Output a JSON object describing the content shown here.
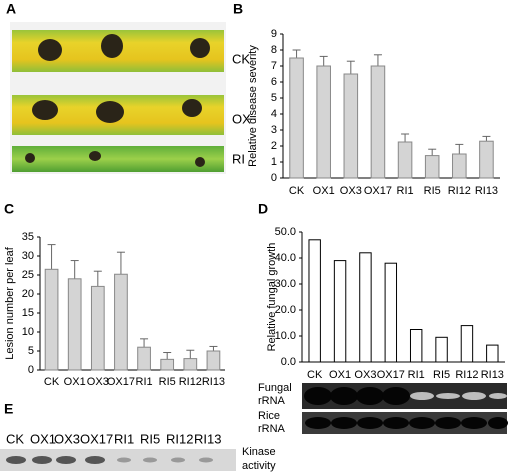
{
  "chart_data": [
    {
      "type": "bar",
      "panel": "B",
      "ylabel": "Relative disease severity",
      "categories": [
        "CK",
        "OX1",
        "OX3",
        "OX17",
        "RI1",
        "RI5",
        "RI12",
        "RI13"
      ],
      "values": [
        7.5,
        7.0,
        6.5,
        7.0,
        2.25,
        1.4,
        1.5,
        2.3
      ],
      "errors": [
        0.5,
        0.6,
        0.8,
        0.7,
        0.5,
        0.4,
        0.6,
        0.3
      ],
      "color": "#d4d4d4",
      "edgecolor": "#888888",
      "ylim": [
        0,
        9
      ],
      "yticks": [
        0,
        1,
        2,
        3,
        4,
        5,
        6,
        7,
        8,
        9
      ]
    },
    {
      "type": "bar",
      "panel": "C",
      "ylabel": "Lesion number per leaf",
      "categories": [
        "CK",
        "OX1",
        "OX3",
        "OX17",
        "RI1",
        "RI5",
        "RI12",
        "RI13"
      ],
      "values": [
        26.5,
        24,
        22,
        25.2,
        6,
        2.8,
        3,
        5
      ],
      "errors": [
        6.5,
        4.8,
        4,
        5.8,
        2.2,
        1.8,
        2.2,
        1.2
      ],
      "color": "#d4d4d4",
      "edgecolor": "#888888",
      "ylim": [
        0,
        35
      ],
      "yticks": [
        0,
        5,
        10,
        15,
        20,
        25,
        30,
        35
      ]
    },
    {
      "type": "bar",
      "panel": "D",
      "ylabel": "Relative fungal growth",
      "categories": [
        "CK",
        "OX1",
        "OX3",
        "OX17",
        "RI1",
        "RI5",
        "RI12",
        "RI13"
      ],
      "values": [
        47,
        39,
        42,
        38,
        12.5,
        9.5,
        14,
        6.5
      ],
      "color": "#ffffff",
      "edgecolor": "#000000",
      "ylim": [
        0,
        50
      ],
      "yticks": [
        {
          "value": 0,
          "label": "0.0"
        },
        {
          "value": 10,
          "label": "10.0"
        },
        {
          "value": 20,
          "label": "20.0"
        },
        {
          "value": 30,
          "label": "30.0"
        },
        {
          "value": 40,
          "label": "40.0"
        },
        {
          "value": 50,
          "label": "50.0"
        }
      ]
    }
  ],
  "panel_a": {
    "label": "A",
    "leaf_labels": [
      "CK",
      "OX",
      "RI"
    ]
  },
  "panel_d_blots": {
    "rows": [
      {
        "lines": [
          "Fungal",
          "rRNA"
        ]
      },
      {
        "lines": [
          "Rice",
          "rRNA"
        ]
      }
    ]
  },
  "panel_e": {
    "label": "E",
    "lanes": [
      "CK",
      "OX1",
      "OX3",
      "OX17",
      "RI1",
      "RI5",
      "RI12",
      "RI13"
    ],
    "caption": [
      "Kinase",
      "activity"
    ]
  }
}
